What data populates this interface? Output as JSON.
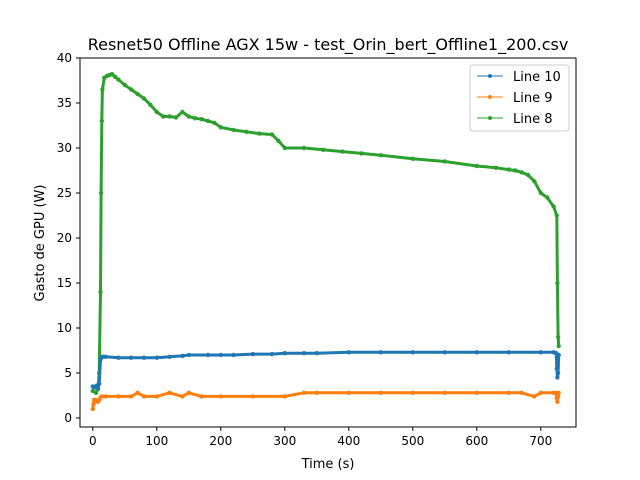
{
  "chart_data": {
    "type": "line",
    "title": "Resnet50 Offline AGX 15w - test_Orin_bert_Offline1_200.csv",
    "xlabel": "Time (s)",
    "ylabel": "Gasto de GPU (W)",
    "xlim": [
      -20,
      755
    ],
    "ylim": [
      -1,
      40
    ],
    "xticks": [
      0,
      100,
      200,
      300,
      400,
      500,
      600,
      700
    ],
    "yticks": [
      0,
      5,
      10,
      15,
      20,
      25,
      30,
      35,
      40
    ],
    "grid": false,
    "legend_position": "top-right",
    "series": [
      {
        "name": "Line 10",
        "color": "#1f77b4",
        "x": [
          0,
          3,
          6,
          8,
          10,
          12,
          14,
          16,
          20,
          40,
          60,
          80,
          100,
          120,
          140,
          150,
          180,
          200,
          220,
          250,
          280,
          300,
          330,
          350,
          400,
          450,
          500,
          550,
          600,
          650,
          700,
          720,
          724,
          725,
          726,
          727,
          728
        ],
        "y": [
          3.5,
          3.4,
          3.6,
          3.3,
          3.8,
          6.5,
          6.8,
          6.8,
          6.8,
          6.7,
          6.7,
          6.7,
          6.7,
          6.8,
          6.9,
          7.0,
          7.0,
          7.0,
          7.0,
          7.1,
          7.1,
          7.2,
          7.2,
          7.2,
          7.3,
          7.3,
          7.3,
          7.3,
          7.3,
          7.3,
          7.3,
          7.3,
          7.2,
          5.5,
          4.5,
          5.0,
          7.0
        ]
      },
      {
        "name": "Line 9",
        "color": "#ff7f0e",
        "x": [
          0,
          1,
          2,
          3,
          5,
          8,
          10,
          12,
          14,
          20,
          40,
          60,
          70,
          80,
          100,
          120,
          140,
          150,
          170,
          200,
          250,
          300,
          330,
          350,
          400,
          450,
          500,
          550,
          600,
          650,
          670,
          690,
          700,
          720,
          724,
          725,
          726,
          727,
          728
        ],
        "y": [
          1.0,
          1.5,
          2.0,
          1.8,
          2.0,
          1.8,
          2.0,
          2.3,
          2.4,
          2.4,
          2.4,
          2.4,
          2.8,
          2.4,
          2.4,
          2.8,
          2.4,
          2.8,
          2.4,
          2.4,
          2.4,
          2.4,
          2.8,
          2.8,
          2.8,
          2.8,
          2.8,
          2.8,
          2.8,
          2.8,
          2.8,
          2.4,
          2.8,
          2.8,
          2.8,
          2.2,
          1.8,
          2.4,
          2.8
        ]
      },
      {
        "name": "Line 8",
        "color": "#2ca02c",
        "x": [
          0,
          5,
          8,
          10,
          12,
          13,
          14,
          15,
          18,
          22,
          26,
          30,
          35,
          40,
          50,
          60,
          70,
          80,
          90,
          100,
          110,
          120,
          130,
          140,
          150,
          160,
          170,
          180,
          190,
          200,
          220,
          240,
          260,
          280,
          290,
          300,
          330,
          360,
          390,
          420,
          450,
          500,
          550,
          600,
          630,
          650,
          660,
          670,
          680,
          690,
          700,
          710,
          720,
          725,
          726,
          727,
          728
        ],
        "y": [
          3.0,
          2.8,
          3.2,
          5.0,
          14.0,
          25.0,
          33.0,
          36.5,
          37.8,
          38.0,
          38.1,
          38.2,
          37.9,
          37.6,
          37.0,
          36.5,
          36.0,
          35.5,
          34.8,
          34.0,
          33.5,
          33.5,
          33.4,
          34.0,
          33.5,
          33.3,
          33.2,
          33.0,
          32.8,
          32.3,
          32.0,
          31.8,
          31.6,
          31.5,
          30.8,
          30.0,
          30.0,
          29.8,
          29.6,
          29.4,
          29.2,
          28.8,
          28.5,
          28.0,
          27.8,
          27.6,
          27.5,
          27.3,
          27.0,
          26.3,
          25.0,
          24.5,
          23.5,
          22.5,
          15.0,
          9.0,
          8.0
        ]
      }
    ]
  }
}
